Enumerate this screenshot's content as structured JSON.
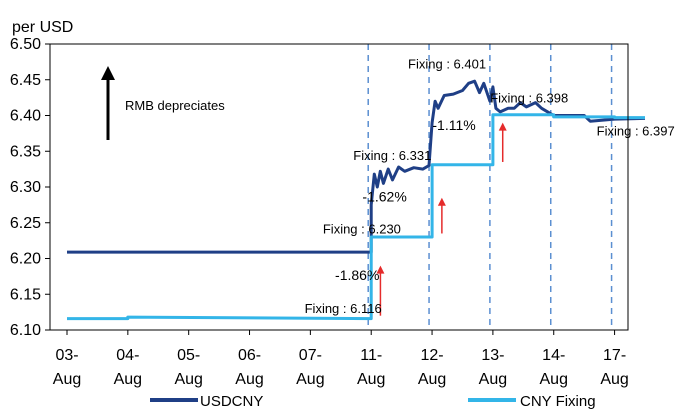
{
  "chart_data": {
    "type": "line",
    "unit_label": "per USD",
    "title": "",
    "xlabel": "",
    "ylabel": "",
    "ylim": [
      6.1,
      6.5
    ],
    "y_ticks": [
      "6.50",
      "6.45",
      "6.40",
      "6.35",
      "6.30",
      "6.25",
      "6.20",
      "6.15",
      "6.10"
    ],
    "x_ticks": [
      {
        "line1": "03-",
        "line2": "Aug"
      },
      {
        "line1": "04-",
        "line2": "Aug"
      },
      {
        "line1": "05-",
        "line2": "Aug"
      },
      {
        "line1": "06-",
        "line2": "Aug"
      },
      {
        "line1": "07-",
        "line2": "Aug"
      },
      {
        "line1": "11-",
        "line2": "Aug"
      },
      {
        "line1": "12-",
        "line2": "Aug"
      },
      {
        "line1": "13-",
        "line2": "Aug"
      },
      {
        "line1": "14-",
        "line2": "Aug"
      },
      {
        "line1": "17-",
        "line2": "Aug"
      }
    ],
    "grid": false,
    "legend_position": "bottom",
    "series": [
      {
        "name": "USDCNY",
        "color": "#1f3f86",
        "points": [
          [
            0,
            6.209
          ],
          [
            5.0,
            6.209
          ],
          [
            5.0,
            6.275
          ],
          [
            5.05,
            6.318
          ],
          [
            5.1,
            6.3
          ],
          [
            5.15,
            6.322
          ],
          [
            5.2,
            6.305
          ],
          [
            5.28,
            6.325
          ],
          [
            5.35,
            6.31
          ],
          [
            5.45,
            6.328
          ],
          [
            5.55,
            6.322
          ],
          [
            5.7,
            6.327
          ],
          [
            5.85,
            6.325
          ],
          [
            5.95,
            6.33
          ],
          [
            6.0,
            6.39
          ],
          [
            6.05,
            6.42
          ],
          [
            6.1,
            6.41
          ],
          [
            6.2,
            6.428
          ],
          [
            6.35,
            6.43
          ],
          [
            6.5,
            6.435
          ],
          [
            6.6,
            6.445
          ],
          [
            6.7,
            6.448
          ],
          [
            6.78,
            6.432
          ],
          [
            6.85,
            6.445
          ],
          [
            6.95,
            6.42
          ],
          [
            7.0,
            6.44
          ],
          [
            7.05,
            6.41
          ],
          [
            7.12,
            6.405
          ],
          [
            7.25,
            6.41
          ],
          [
            7.35,
            6.41
          ],
          [
            7.45,
            6.418
          ],
          [
            7.55,
            6.412
          ],
          [
            7.7,
            6.418
          ],
          [
            7.8,
            6.41
          ],
          [
            7.9,
            6.405
          ],
          [
            8.0,
            6.4
          ],
          [
            8.3,
            6.4
          ],
          [
            8.5,
            6.4
          ],
          [
            8.6,
            6.392
          ],
          [
            9.0,
            6.395
          ],
          [
            9.5,
            6.396
          ]
        ]
      },
      {
        "name": "CNY Fixing",
        "color": "#33b5e8",
        "points": [
          [
            0,
            6.116
          ],
          [
            1.0,
            6.116
          ],
          [
            1.0,
            6.118
          ],
          [
            5.0,
            6.116
          ],
          [
            5.0,
            6.23
          ],
          [
            6.0,
            6.23
          ],
          [
            6.0,
            6.331
          ],
          [
            7.0,
            6.331
          ],
          [
            7.0,
            6.401
          ],
          [
            8.0,
            6.401
          ],
          [
            8.0,
            6.398
          ],
          [
            9.0,
            6.398
          ],
          [
            9.0,
            6.397
          ],
          [
            9.5,
            6.397
          ]
        ]
      }
    ],
    "event_lines": [
      5.0,
      6.0,
      7.0,
      8.0,
      9.0
    ],
    "fixing_labels": [
      {
        "text": "Fixing : 6.116",
        "x": 4.3,
        "y": 6.124
      },
      {
        "text": "Fixing : 6.230",
        "x": 4.6,
        "y": 6.235
      },
      {
        "text": "Fixing : 6.331",
        "x": 5.1,
        "y": 6.338
      },
      {
        "text": "Fixing : 6.401",
        "x": 6.0,
        "y": 6.466
      },
      {
        "text": "Fixing : 6.398",
        "x": 7.35,
        "y": 6.418
      },
      {
        "text": "Fixing : 6.397",
        "x": 9.1,
        "y": 6.372
      }
    ],
    "change_labels": [
      {
        "text": "-1.86%",
        "x": 4.8,
        "y": 6.17
      },
      {
        "text": "-1.62%",
        "x": 5.25,
        "y": 6.28
      },
      {
        "text": "-1.11%",
        "x": 6.4,
        "y": 6.38
      }
    ],
    "red_arrows": [
      {
        "x": 5.02,
        "y_from": 6.12,
        "y_to": 6.19
      },
      {
        "x": 6.03,
        "y_from": 6.235,
        "y_to": 6.285
      },
      {
        "x": 7.03,
        "y_from": 6.335,
        "y_to": 6.39
      }
    ],
    "annotation": {
      "text": "RMB depreciates"
    }
  }
}
